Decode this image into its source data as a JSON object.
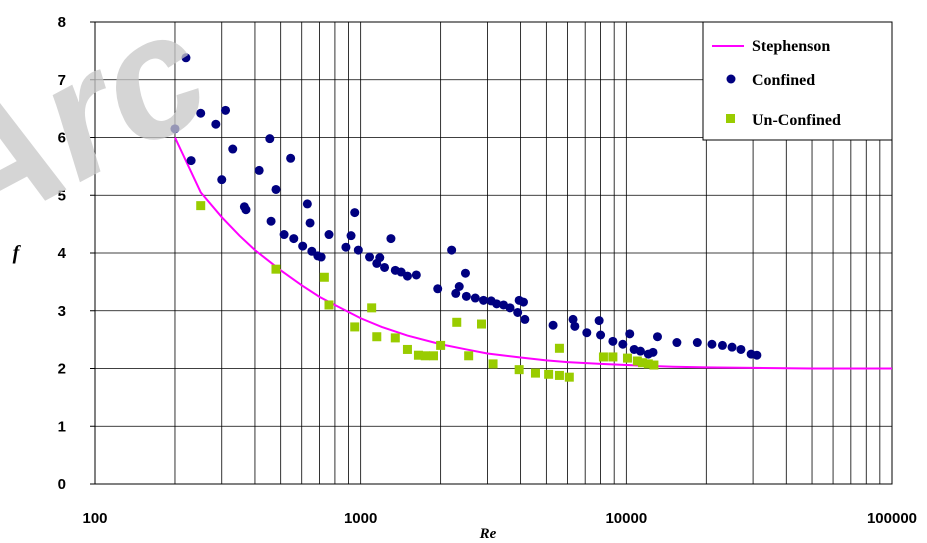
{
  "watermark": "Arc",
  "chart_data": {
    "type": "scatter",
    "xlabel": "Re",
    "ylabel": "f",
    "x_scale": "log",
    "xlim": [
      100,
      100000
    ],
    "ylim": [
      0,
      8
    ],
    "x_ticks": [
      "100",
      "1000",
      "10000",
      "100000"
    ],
    "y_ticks": [
      "0",
      "1",
      "2",
      "3",
      "4",
      "5",
      "6",
      "7",
      "8"
    ],
    "grid": true,
    "legend_position": "top-right",
    "colors": {
      "stephenson": "#ff00ff",
      "confined": "#000080",
      "unconfined": "#99cc00"
    },
    "series": [
      {
        "name": "Stephenson",
        "kind": "line",
        "points": [
          [
            200,
            6.0
          ],
          [
            250,
            5.05
          ],
          [
            300,
            4.62
          ],
          [
            350,
            4.3
          ],
          [
            400,
            4.05
          ],
          [
            500,
            3.7
          ],
          [
            600,
            3.44
          ],
          [
            700,
            3.24
          ],
          [
            800,
            3.1
          ],
          [
            1000,
            2.87
          ],
          [
            1200,
            2.72
          ],
          [
            1500,
            2.57
          ],
          [
            2000,
            2.42
          ],
          [
            2500,
            2.33
          ],
          [
            3000,
            2.26
          ],
          [
            4000,
            2.19
          ],
          [
            5000,
            2.14
          ],
          [
            6000,
            2.11
          ],
          [
            8000,
            2.08
          ],
          [
            10000,
            2.06
          ],
          [
            15000,
            2.03
          ],
          [
            20000,
            2.02
          ],
          [
            30000,
            2.01
          ],
          [
            50000,
            2.0
          ],
          [
            100000,
            2.0
          ]
        ]
      },
      {
        "name": "Confined",
        "kind": "markers",
        "points": [
          [
            200,
            6.15
          ],
          [
            220,
            7.38
          ],
          [
            230,
            5.6
          ],
          [
            250,
            6.42
          ],
          [
            285,
            6.23
          ],
          [
            300,
            5.27
          ],
          [
            310,
            6.47
          ],
          [
            330,
            5.8
          ],
          [
            365,
            4.8
          ],
          [
            370,
            4.75
          ],
          [
            415,
            5.43
          ],
          [
            455,
            5.98
          ],
          [
            460,
            4.55
          ],
          [
            480,
            5.1
          ],
          [
            515,
            4.32
          ],
          [
            545,
            5.64
          ],
          [
            560,
            4.25
          ],
          [
            605,
            4.12
          ],
          [
            630,
            4.85
          ],
          [
            645,
            4.52
          ],
          [
            655,
            4.03
          ],
          [
            690,
            3.95
          ],
          [
            710,
            3.93
          ],
          [
            760,
            4.32
          ],
          [
            880,
            4.1
          ],
          [
            920,
            4.3
          ],
          [
            950,
            4.7
          ],
          [
            980,
            4.05
          ],
          [
            1080,
            3.93
          ],
          [
            1150,
            3.82
          ],
          [
            1180,
            3.92
          ],
          [
            1230,
            3.75
          ],
          [
            1300,
            4.25
          ],
          [
            1350,
            3.7
          ],
          [
            1420,
            3.67
          ],
          [
            1500,
            3.6
          ],
          [
            1620,
            3.62
          ],
          [
            1950,
            3.38
          ],
          [
            2200,
            4.05
          ],
          [
            2280,
            3.3
          ],
          [
            2350,
            3.42
          ],
          [
            2480,
            3.65
          ],
          [
            2500,
            3.25
          ],
          [
            2700,
            3.22
          ],
          [
            2900,
            3.18
          ],
          [
            3100,
            3.17
          ],
          [
            3250,
            3.12
          ],
          [
            3450,
            3.1
          ],
          [
            3650,
            3.05
          ],
          [
            3900,
            2.97
          ],
          [
            3950,
            3.18
          ],
          [
            4100,
            3.15
          ],
          [
            4150,
            2.85
          ],
          [
            5300,
            2.75
          ],
          [
            6300,
            2.85
          ],
          [
            6400,
            2.73
          ],
          [
            7100,
            2.62
          ],
          [
            7900,
            2.83
          ],
          [
            8000,
            2.58
          ],
          [
            8900,
            2.47
          ],
          [
            9700,
            2.42
          ],
          [
            10300,
            2.6
          ],
          [
            10700,
            2.33
          ],
          [
            11300,
            2.3
          ],
          [
            12100,
            2.25
          ],
          [
            12600,
            2.28
          ],
          [
            13100,
            2.55
          ],
          [
            15500,
            2.45
          ],
          [
            18500,
            2.45
          ],
          [
            21000,
            2.42
          ],
          [
            23000,
            2.4
          ],
          [
            25000,
            2.37
          ],
          [
            27000,
            2.33
          ],
          [
            29500,
            2.25
          ],
          [
            31000,
            2.23
          ]
        ]
      },
      {
        "name": "Un-Confined",
        "kind": "markers",
        "points": [
          [
            250,
            4.82
          ],
          [
            480,
            3.72
          ],
          [
            730,
            3.58
          ],
          [
            760,
            3.1
          ],
          [
            950,
            2.72
          ],
          [
            1100,
            3.05
          ],
          [
            1150,
            2.55
          ],
          [
            1350,
            2.53
          ],
          [
            1500,
            2.33
          ],
          [
            1650,
            2.23
          ],
          [
            1750,
            2.22
          ],
          [
            1880,
            2.22
          ],
          [
            2000,
            2.4
          ],
          [
            2300,
            2.8
          ],
          [
            2550,
            2.22
          ],
          [
            2850,
            2.77
          ],
          [
            3150,
            2.08
          ],
          [
            3950,
            1.98
          ],
          [
            4550,
            1.92
          ],
          [
            5100,
            1.9
          ],
          [
            5600,
            2.35
          ],
          [
            5600,
            1.88
          ],
          [
            6100,
            1.85
          ],
          [
            8200,
            2.2
          ],
          [
            8900,
            2.2
          ],
          [
            10100,
            2.18
          ],
          [
            11000,
            2.13
          ],
          [
            11500,
            2.1
          ],
          [
            12100,
            2.08
          ],
          [
            12700,
            2.06
          ]
        ]
      }
    ]
  }
}
